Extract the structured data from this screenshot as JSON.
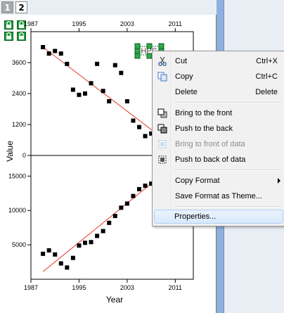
{
  "tabs": [
    {
      "label": "1",
      "active": true
    },
    {
      "label": "2",
      "active": false
    }
  ],
  "graph": {
    "top_axis_ticks": [
      "1987",
      "1995",
      "2003",
      "2011"
    ],
    "bottom_axis_ticks": [
      "1987",
      "1995",
      "2003",
      "2011"
    ],
    "upper_y_ticks": [
      "0",
      "1200",
      "2400",
      "3600"
    ],
    "lower_y_ticks": [
      "5000",
      "10000",
      "15000"
    ],
    "y_label": "Value",
    "x_label": "Year",
    "selected_object_label": "HPC"
  },
  "chart_data": [
    {
      "type": "scatter",
      "xlim": [
        1987,
        2014
      ],
      "ylim": [
        0,
        4800
      ],
      "xticks": [
        1987,
        1995,
        2003,
        2011
      ],
      "yticks": [
        0,
        1200,
        2400,
        3600
      ],
      "ylabel": "Value",
      "x": [
        1989,
        1990,
        1991,
        1992,
        1993,
        1994,
        1995,
        1996,
        1997,
        1998,
        1999,
        2000,
        2001,
        2002,
        2003,
        2004,
        2005,
        2006,
        2007,
        2008
      ],
      "y": [
        4200,
        3950,
        4050,
        3950,
        3550,
        2550,
        2350,
        2400,
        2800,
        3550,
        2500,
        2100,
        3500,
        3200,
        2100,
        1350,
        1100,
        750,
        850,
        500
      ],
      "fit_line": {
        "x": [
          1989,
          2009
        ],
        "y": [
          4200,
          650
        ]
      },
      "marker_color": "#000000",
      "fit_color": "#e8392c"
    },
    {
      "type": "scatter",
      "xlim": [
        1987,
        2014
      ],
      "ylim": [
        0,
        18000
      ],
      "xticks": [
        1987,
        1995,
        2003,
        2011
      ],
      "yticks": [
        5000,
        10000,
        15000
      ],
      "xlabel": "Year",
      "x": [
        1989,
        1990,
        1991,
        1992,
        1993,
        1994,
        1995,
        1996,
        1997,
        1998,
        1999,
        2000,
        2001,
        2002,
        2003,
        2004,
        2005,
        2006,
        2007,
        2008
      ],
      "y": [
        3700,
        4200,
        3600,
        2300,
        1700,
        3100,
        4900,
        5300,
        5400,
        6300,
        7000,
        8200,
        9200,
        10400,
        11000,
        12100,
        13100,
        13600,
        13900,
        14400
      ],
      "fit_line": {
        "x": [
          1989,
          2008
        ],
        "y": [
          1100,
          14600
        ]
      },
      "marker_color": "#000000",
      "fit_color": "#e8392c"
    }
  ],
  "context_menu": {
    "items": [
      {
        "name": "cut",
        "label": "Cut",
        "shortcut": "Ctrl+X",
        "icon": "scissors-icon",
        "disabled": false
      },
      {
        "name": "copy",
        "label": "Copy",
        "shortcut": "Ctrl+C",
        "icon": "copy-icon",
        "disabled": false
      },
      {
        "name": "delete",
        "label": "Delete",
        "shortcut": "Delete",
        "disabled": false
      },
      {
        "name": "bring-to-front",
        "label": "Bring to the front",
        "icon": "bring-to-front-icon",
        "disabled": false
      },
      {
        "name": "push-to-back",
        "label": "Push to the back",
        "icon": "push-to-back-icon",
        "disabled": false
      },
      {
        "name": "bring-to-front-of-data",
        "label": "Bring to front of data",
        "icon": "bring-to-front-of-data-icon",
        "disabled": true
      },
      {
        "name": "push-to-back-of-data",
        "label": "Push to back of data",
        "icon": "push-to-back-of-data-icon",
        "disabled": false
      },
      {
        "name": "copy-format",
        "label": "Copy Format",
        "has_submenu": true,
        "disabled": false
      },
      {
        "name": "save-format-as-theme",
        "label": "Save Format as Theme...",
        "disabled": false
      },
      {
        "name": "properties",
        "label": "Properties...",
        "highlighted": true,
        "disabled": false
      }
    ]
  }
}
